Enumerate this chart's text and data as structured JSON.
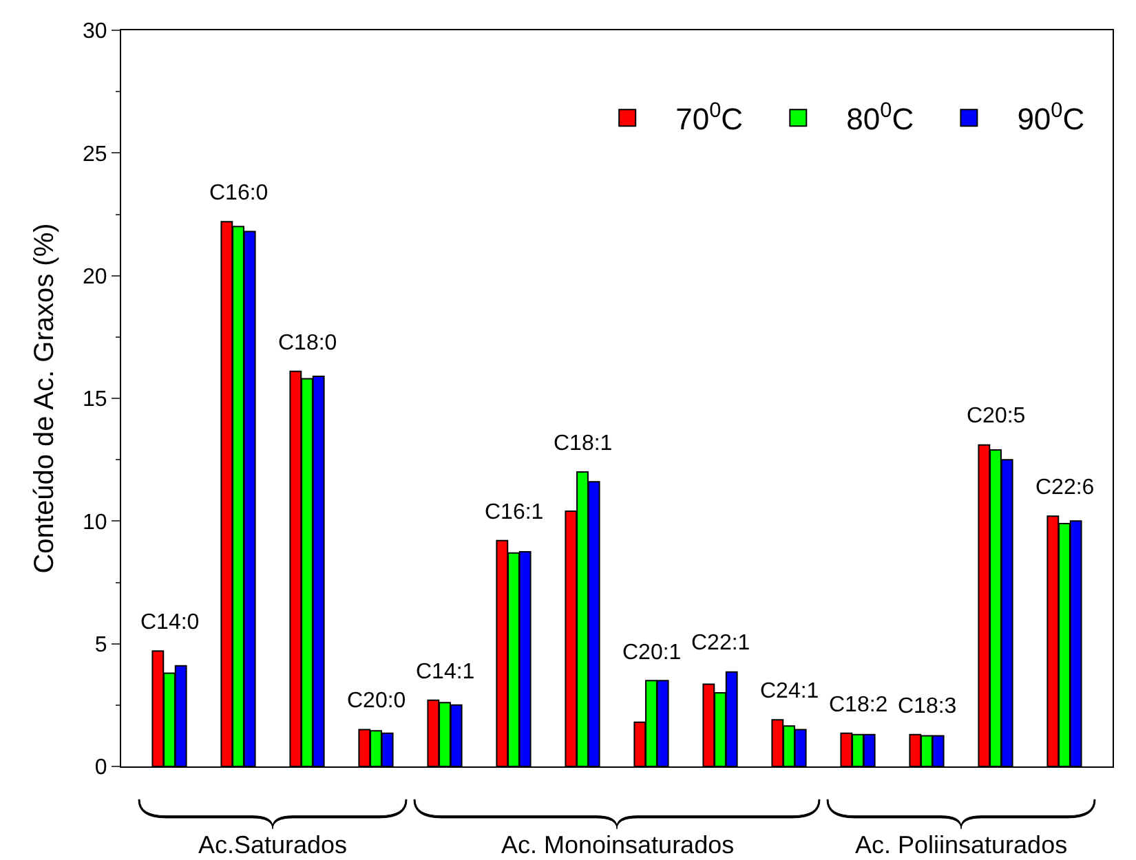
{
  "chart_data": {
    "type": "bar",
    "ylabel": "Conteúdo de Ac. Graxos (%)",
    "categories": [
      "C14:0",
      "C16:0",
      "C18:0",
      "C20:0",
      "C14:1",
      "C16:1",
      "C18:1",
      "C20:1",
      "C22:1",
      "C24:1",
      "C18:2",
      "C18:3",
      "C20:5",
      "C22:6"
    ],
    "series": [
      {
        "name": "70$^{0}$C",
        "color": "#ff0000",
        "values": [
          4.7,
          22.2,
          16.1,
          1.5,
          2.7,
          9.2,
          10.4,
          1.8,
          3.35,
          1.9,
          1.35,
          1.3,
          13.1,
          10.2
        ]
      },
      {
        "name": "80$^{0}$C",
        "color": "#00ff00",
        "values": [
          3.8,
          22.0,
          15.8,
          1.45,
          2.6,
          8.7,
          12.0,
          3.5,
          3.0,
          1.65,
          1.3,
          1.25,
          12.9,
          9.9
        ]
      },
      {
        "name": "90$^{0}$C",
        "color": "#0000ff",
        "values": [
          4.1,
          21.8,
          15.9,
          1.35,
          2.5,
          8.75,
          11.6,
          3.5,
          3.85,
          1.5,
          1.3,
          1.25,
          12.5,
          10.0
        ]
      }
    ],
    "ylim": [
      0,
      30
    ],
    "yticks": [
      0,
      5,
      10,
      15,
      20,
      25,
      30
    ],
    "legend": "top right",
    "tick_labels": "y",
    "annotations": [
      "Ac.Saturados",
      "Ac. Monoinsaturados",
      "Ac. Poliinsaturados"
    ]
  }
}
